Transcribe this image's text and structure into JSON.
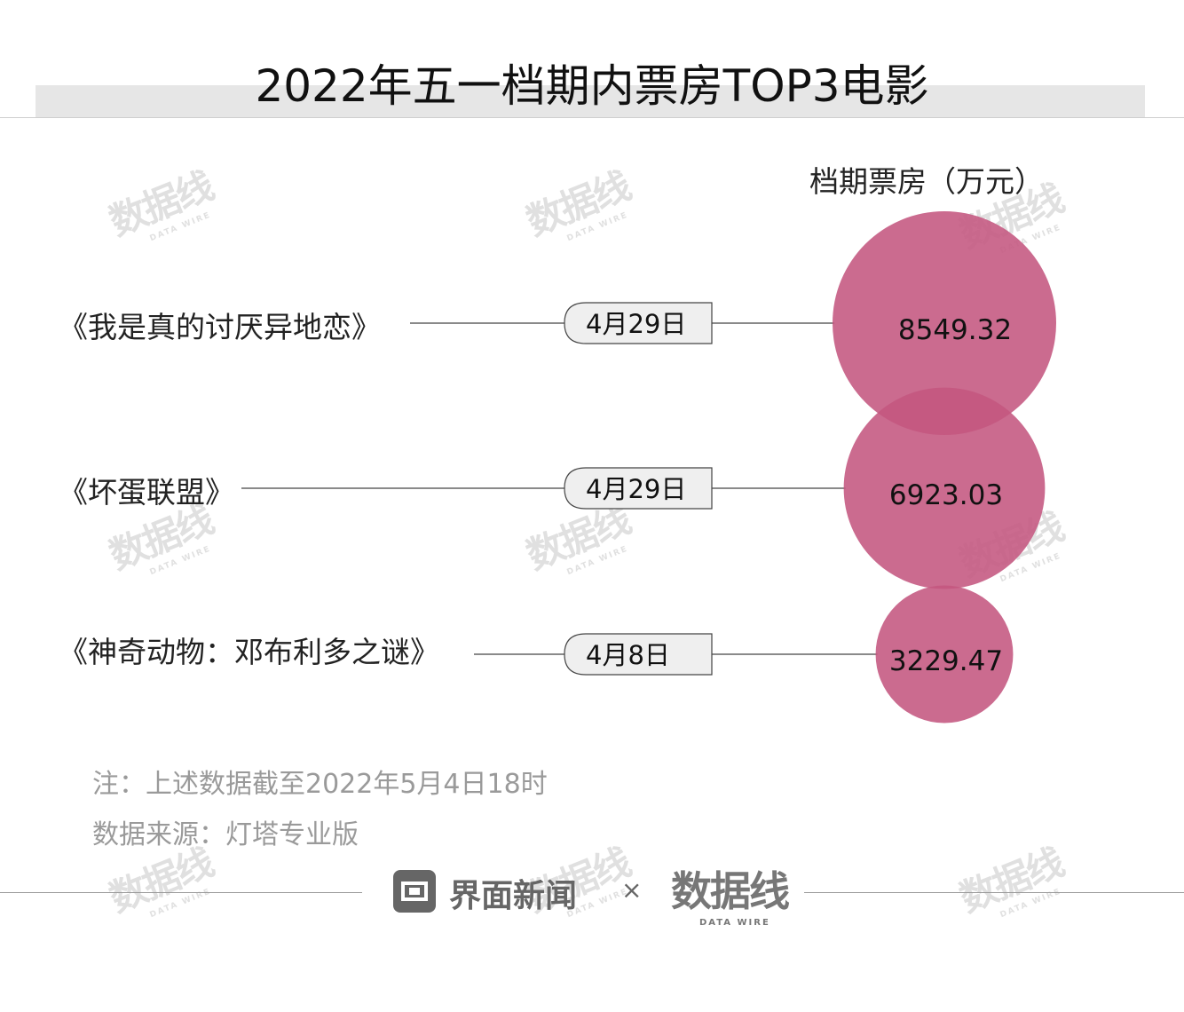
{
  "title": "2022年五一档期内票房TOP3电影",
  "unit_label": "档期票房（万元）",
  "colors": {
    "bubble": "#c4577f",
    "line": "#444444",
    "tag_bg": "#efefef"
  },
  "chart_data": {
    "type": "bubble",
    "title": "2022年五一档期内票房TOP3电影",
    "value_label": "档期票房（万元）",
    "categories": [
      "《我是真的讨厌异地恋》",
      "《坏蛋联盟》",
      "《神奇动物：邓布利多之谜》"
    ],
    "release_dates": [
      "4月29日",
      "4月29日",
      "4月8日"
    ],
    "values": [
      8549.32,
      6923.03,
      3229.47
    ],
    "value_labels": [
      "8549.32",
      "6923.03",
      "3229.47"
    ]
  },
  "notes": {
    "note": "注：上述数据截至2022年5月4日18时",
    "source": "数据来源：灯塔专业版"
  },
  "footer": {
    "brand": "界面新闻",
    "times": "×",
    "partner": "数据线",
    "partner_sub": "DATA WIRE"
  },
  "watermark": {
    "main": "数据线",
    "sub": "DATA WIRE"
  }
}
